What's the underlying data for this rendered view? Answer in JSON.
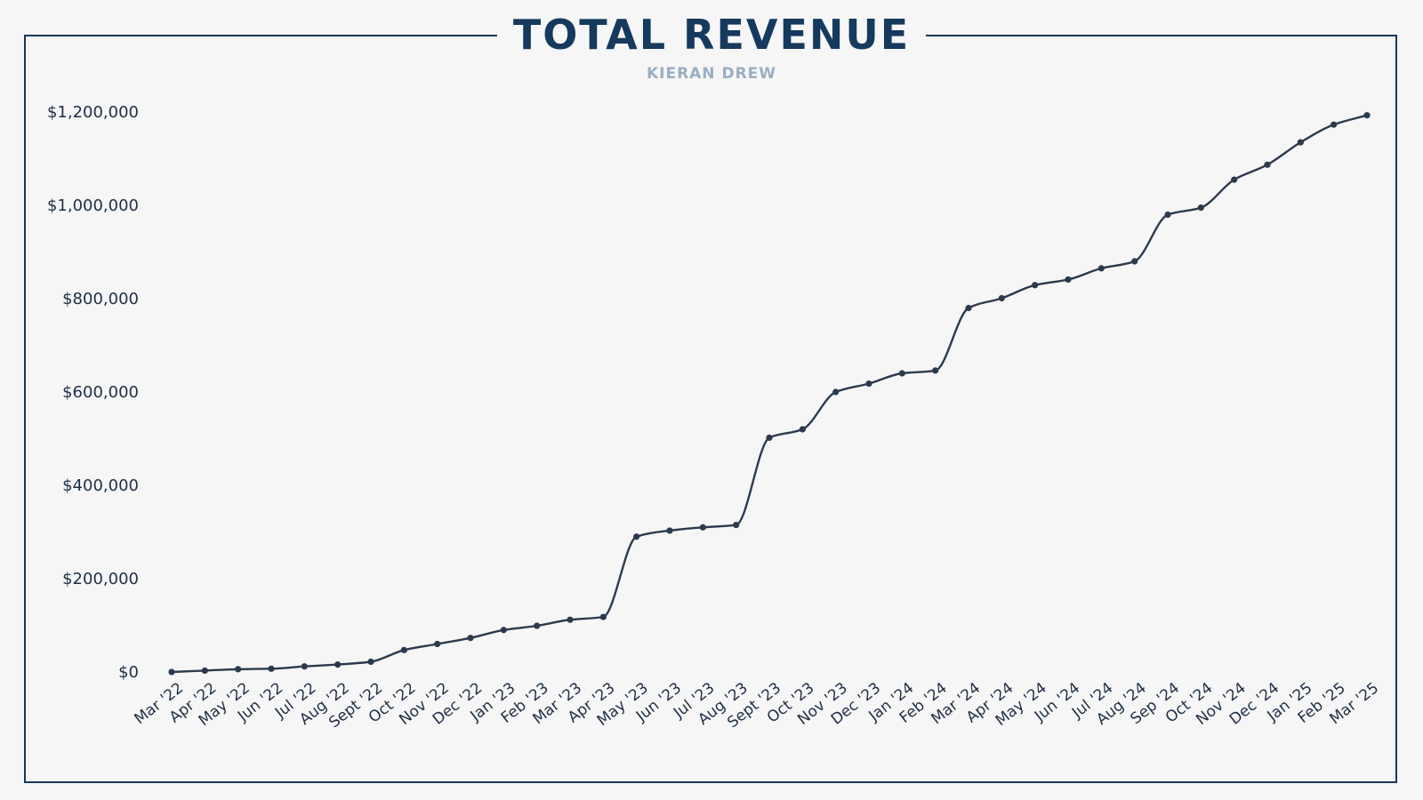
{
  "chart_data": {
    "type": "line",
    "title": "TOTAL REVENUE",
    "subtitle": "KIERAN DREW",
    "xlabel": "",
    "ylabel": "",
    "ylim": [
      0,
      1200000
    ],
    "yticks": [
      0,
      200000,
      400000,
      600000,
      800000,
      1000000,
      1200000
    ],
    "ytick_labels": [
      "$0",
      "$200,000",
      "$400,000",
      "$600,000",
      "$800,000",
      "$1,000,000",
      "$1,200,000"
    ],
    "grid": false,
    "legend": "none",
    "colors": {
      "line": "#2c3a4d",
      "frame": "#153a5e",
      "title": "#153a5e",
      "subtitle": "#9aaec3",
      "text": "#1f2f45"
    },
    "categories": [
      "Mar '22",
      "Apr '22",
      "May '22",
      "Jun '22",
      "Jul '22",
      "Aug '22",
      "Sept '22",
      "Oct '22",
      "Nov '22",
      "Dec '22",
      "Jan '23",
      "Feb '23",
      "Mar '23",
      "Apr '23",
      "May '23",
      "Jun '23",
      "Jul '23",
      "Aug '23",
      "Sept '23",
      "Oct '23",
      "Nov '23",
      "Dec '23",
      "Jan '24",
      "Feb '24",
      "Mar '24",
      "Apr '24",
      "May '24",
      "Jun '24",
      "Jul '24",
      "Aug '24",
      "Sep '24",
      "Oct '24",
      "Nov '24",
      "Dec '24",
      "Jan '25",
      "Feb '25",
      "Mar '25"
    ],
    "series": [
      {
        "values": [
          0,
          3000,
          6000,
          7000,
          12000,
          16000,
          22000,
          47000,
          60000,
          73000,
          90000,
          99000,
          112000,
          118000,
          290000,
          303000,
          310000,
          315000,
          502000,
          520000,
          600000,
          618000,
          640000,
          646000,
          780000,
          801000,
          829000,
          841000,
          865000,
          880000,
          980000,
          995000,
          1055000,
          1087000,
          1135000,
          1173000,
          1193000
        ]
      }
    ]
  }
}
